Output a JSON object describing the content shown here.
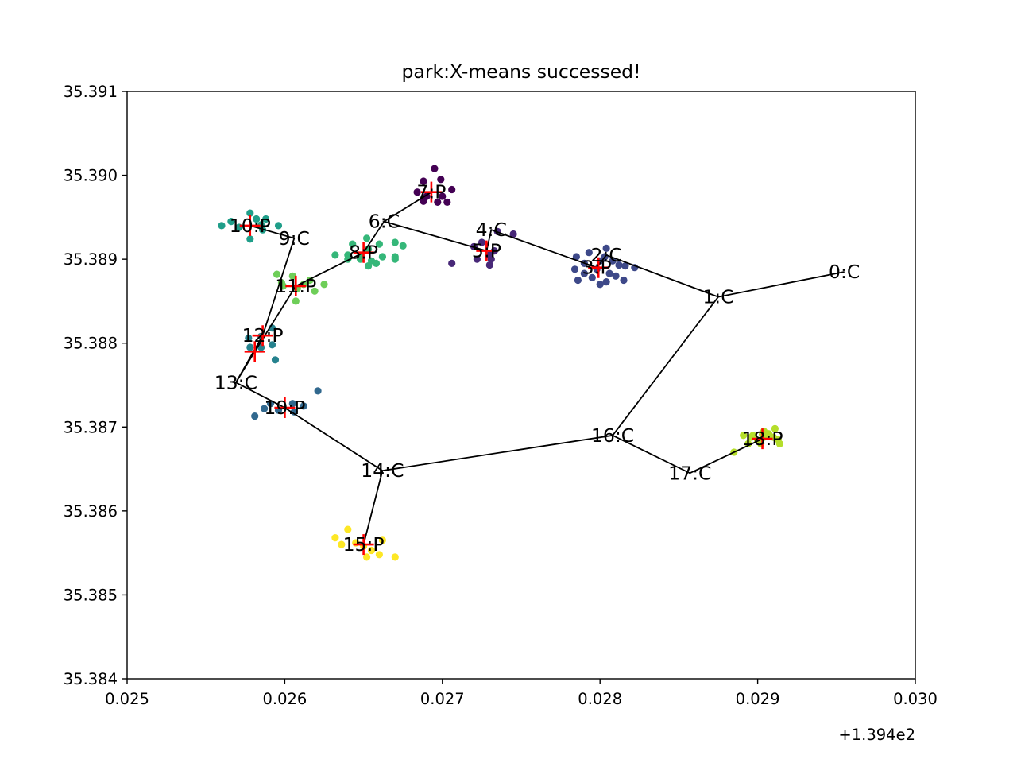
{
  "chart_data": {
    "type": "scatter",
    "title": "park:X-means successed!",
    "x_offset_label": "+1.394e2",
    "xlim": [
      0.025,
      0.03
    ],
    "ylim": [
      35.384,
      35.391
    ],
    "x_ticks": [
      "0.025",
      "0.026",
      "0.027",
      "0.028",
      "0.029",
      "0.030"
    ],
    "y_ticks": [
      "35.384",
      "35.385",
      "35.386",
      "35.387",
      "35.388",
      "35.389",
      "35.390",
      "35.391"
    ],
    "grid": false,
    "route": [
      {
        "label": "0:C",
        "x": 0.02955,
        "y": 35.38885
      },
      {
        "label": "1:C",
        "x": 0.02875,
        "y": 35.38855
      },
      {
        "label": "2:C",
        "x": 0.02804,
        "y": 35.38905
      },
      {
        "label": "3:P",
        "x": 0.02798,
        "y": 35.3889
      },
      {
        "label": "4:C",
        "x": 0.02731,
        "y": 35.38935
      },
      {
        "label": "5:P",
        "x": 0.02728,
        "y": 35.3891
      },
      {
        "label": "6:C",
        "x": 0.02663,
        "y": 35.38945
      },
      {
        "label": "7:P",
        "x": 0.02693,
        "y": 35.3898
      },
      {
        "label": "6:C",
        "x": 0.02663,
        "y": 35.38945
      },
      {
        "label": "8:P",
        "x": 0.0265,
        "y": 35.38908
      },
      {
        "label": "11:P",
        "x": 0.02607,
        "y": 35.38868
      },
      {
        "label": "12:P",
        "x": 0.02581,
        "y": 35.3879
      },
      {
        "label": "13:C",
        "x": 0.02569,
        "y": 35.38753
      },
      {
        "label": "12:P",
        "x": 0.02586,
        "y": 35.38809
      },
      {
        "label": "9:C",
        "x": 0.02606,
        "y": 35.38925
      },
      {
        "label": "10:P",
        "x": 0.02578,
        "y": 35.3894
      },
      {
        "label": "9:C",
        "x": 0.02606,
        "y": 35.38925
      },
      {
        "label": "12:P",
        "x": 0.02586,
        "y": 35.38809
      },
      {
        "label": "13:C",
        "x": 0.02569,
        "y": 35.38753
      },
      {
        "label": "19:P",
        "x": 0.026,
        "y": 35.38723
      },
      {
        "label": "14:C",
        "x": 0.02662,
        "y": 35.38648
      },
      {
        "label": "15:P",
        "x": 0.0265,
        "y": 35.3856
      },
      {
        "label": "14:C",
        "x": 0.02662,
        "y": 35.38648
      },
      {
        "label": "16:C",
        "x": 0.02808,
        "y": 35.3869
      },
      {
        "label": "17:C",
        "x": 0.02857,
        "y": 35.38645
      },
      {
        "label": "18:P",
        "x": 0.02903,
        "y": 35.38686
      },
      {
        "label": "17:C",
        "x": 0.02857,
        "y": 35.38645
      },
      {
        "label": "16:C",
        "x": 0.02808,
        "y": 35.3869
      },
      {
        "label": "1:C",
        "x": 0.02875,
        "y": 35.38855
      }
    ],
    "node_labels": [
      {
        "label": "0:C",
        "x": 0.02955,
        "y": 35.38885
      },
      {
        "label": "1:C",
        "x": 0.02875,
        "y": 35.38855
      },
      {
        "label": "2:C",
        "x": 0.02804,
        "y": 35.38905
      },
      {
        "label": "3:P",
        "x": 0.02798,
        "y": 35.3889
      },
      {
        "label": "4:C",
        "x": 0.02731,
        "y": 35.38935
      },
      {
        "label": "5:P",
        "x": 0.02728,
        "y": 35.3891
      },
      {
        "label": "6:C",
        "x": 0.02663,
        "y": 35.38945
      },
      {
        "label": "7:P",
        "x": 0.02693,
        "y": 35.3898
      },
      {
        "label": "8:P",
        "x": 0.0265,
        "y": 35.38908
      },
      {
        "label": "9:C",
        "x": 0.02606,
        "y": 35.38925
      },
      {
        "label": "10:P",
        "x": 0.02578,
        "y": 35.3894
      },
      {
        "label": "11:P",
        "x": 0.02607,
        "y": 35.38868
      },
      {
        "label": "12:P",
        "x": 0.02586,
        "y": 35.38809
      },
      {
        "label": "13:C",
        "x": 0.02569,
        "y": 35.38753
      },
      {
        "label": "14:C",
        "x": 0.02662,
        "y": 35.38648
      },
      {
        "label": "15:P",
        "x": 0.0265,
        "y": 35.3856
      },
      {
        "label": "16:C",
        "x": 0.02808,
        "y": 35.3869
      },
      {
        "label": "17:C",
        "x": 0.02857,
        "y": 35.38645
      },
      {
        "label": "18:P",
        "x": 0.02903,
        "y": 35.38686
      },
      {
        "label": "19:P",
        "x": 0.026,
        "y": 35.38723
      }
    ],
    "centroids": [
      {
        "x": 0.02693,
        "y": 35.3898
      },
      {
        "x": 0.02799,
        "y": 35.3889
      },
      {
        "x": 0.02728,
        "y": 35.3891
      },
      {
        "x": 0.0265,
        "y": 35.38908
      },
      {
        "x": 0.02578,
        "y": 35.3894
      },
      {
        "x": 0.02607,
        "y": 35.38868
      },
      {
        "x": 0.02581,
        "y": 35.3879
      },
      {
        "x": 0.02586,
        "y": 35.38809
      },
      {
        "x": 0.026,
        "y": 35.38723
      },
      {
        "x": 0.0265,
        "y": 35.3856
      },
      {
        "x": 0.02903,
        "y": 35.38686
      }
    ],
    "clusters": [
      {
        "color": "#440154",
        "points": [
          [
            0.02695,
            35.39008
          ],
          [
            0.02688,
            35.38993
          ],
          [
            0.02699,
            35.38995
          ],
          [
            0.02684,
            35.3898
          ],
          [
            0.02706,
            35.38983
          ],
          [
            0.0269,
            35.38975
          ],
          [
            0.02697,
            35.38968
          ],
          [
            0.02703,
            35.38968
          ],
          [
            0.027,
            35.38975
          ],
          [
            0.02688,
            35.38969
          ]
        ]
      },
      {
        "color": "#482878",
        "points": [
          [
            0.02745,
            35.3893
          ],
          [
            0.02735,
            35.38933
          ],
          [
            0.0272,
            35.38915
          ],
          [
            0.0273,
            35.38905
          ],
          [
            0.02731,
            35.389
          ],
          [
            0.02722,
            35.389
          ],
          [
            0.0273,
            35.38893
          ],
          [
            0.02706,
            35.38895
          ],
          [
            0.02725,
            35.3892
          ],
          [
            0.02733,
            35.3891
          ]
        ]
      },
      {
        "color": "#3e4989",
        "points": [
          [
            0.02804,
            35.38913
          ],
          [
            0.02785,
            35.38903
          ],
          [
            0.0279,
            35.38895
          ],
          [
            0.028,
            35.38898
          ],
          [
            0.02812,
            35.38893
          ],
          [
            0.0279,
            35.38883
          ],
          [
            0.02806,
            35.38883
          ],
          [
            0.02795,
            35.38878
          ],
          [
            0.02804,
            35.38873
          ],
          [
            0.02786,
            35.38875
          ],
          [
            0.02815,
            35.38875
          ],
          [
            0.02822,
            35.3889
          ],
          [
            0.02784,
            35.38888
          ],
          [
            0.02798,
            35.38888
          ],
          [
            0.0281,
            35.3888
          ],
          [
            0.02803,
            35.38903
          ],
          [
            0.02816,
            35.38892
          ],
          [
            0.02793,
            35.38908
          ],
          [
            0.02808,
            35.38898
          ],
          [
            0.028,
            35.3887
          ]
        ]
      },
      {
        "color": "#31688e",
        "points": [
          [
            0.02621,
            35.38743
          ],
          [
            0.02612,
            35.38725
          ],
          [
            0.02605,
            35.38728
          ],
          [
            0.02596,
            35.3872
          ],
          [
            0.02587,
            35.38722
          ],
          [
            0.02581,
            35.38713
          ],
          [
            0.02591,
            35.38728
          ],
          [
            0.02606,
            35.38718
          ]
        ]
      },
      {
        "color": "#26828e",
        "points": [
          [
            0.02585,
            35.38808
          ],
          [
            0.02592,
            35.38818
          ],
          [
            0.02578,
            35.38795
          ],
          [
            0.02585,
            35.38795
          ],
          [
            0.02592,
            35.38798
          ],
          [
            0.02594,
            35.3878
          ],
          [
            0.02577,
            35.38806
          ]
        ]
      },
      {
        "color": "#1f9e89",
        "points": [
          [
            0.02578,
            35.38955
          ],
          [
            0.02566,
            35.38945
          ],
          [
            0.0256,
            35.3894
          ],
          [
            0.02588,
            35.38948
          ],
          [
            0.02596,
            35.3894
          ],
          [
            0.02586,
            35.38935
          ],
          [
            0.02578,
            35.38924
          ],
          [
            0.02571,
            35.38938
          ],
          [
            0.02585,
            35.38941
          ],
          [
            0.02582,
            35.38948
          ]
        ]
      },
      {
        "color": "#35b779",
        "points": [
          [
            0.02643,
            35.38918
          ],
          [
            0.02652,
            35.38925
          ],
          [
            0.0266,
            35.38918
          ],
          [
            0.0267,
            35.3892
          ],
          [
            0.02675,
            35.38916
          ],
          [
            0.02632,
            35.38905
          ],
          [
            0.0264,
            35.38905
          ],
          [
            0.02648,
            35.38903
          ],
          [
            0.02653,
            35.38912
          ],
          [
            0.02662,
            35.38903
          ],
          [
            0.0267,
            35.389
          ],
          [
            0.0264,
            35.389
          ],
          [
            0.02648,
            35.389
          ],
          [
            0.02655,
            35.38898
          ],
          [
            0.02662,
            35.38903
          ],
          [
            0.0267,
            35.38903
          ],
          [
            0.02653,
            35.38892
          ],
          [
            0.02658,
            35.38895
          ]
        ]
      },
      {
        "color": "#6ece58",
        "points": [
          [
            0.02595,
            35.38882
          ],
          [
            0.02605,
            35.3888
          ],
          [
            0.02616,
            35.38875
          ],
          [
            0.02625,
            35.3887
          ],
          [
            0.02599,
            35.38868
          ],
          [
            0.02608,
            35.38865
          ],
          [
            0.02619,
            35.38862
          ],
          [
            0.02607,
            35.3885
          ],
          [
            0.02598,
            35.38872
          ],
          [
            0.02612,
            35.3887
          ]
        ]
      },
      {
        "color": "#b5de2b",
        "points": [
          [
            0.02904,
            35.38695
          ],
          [
            0.02911,
            35.38698
          ],
          [
            0.02897,
            35.3869
          ],
          [
            0.02904,
            35.38688
          ],
          [
            0.02913,
            35.38685
          ],
          [
            0.02891,
            35.3869
          ],
          [
            0.029,
            35.38684
          ],
          [
            0.0291,
            35.38688
          ],
          [
            0.02894,
            35.3868
          ],
          [
            0.02902,
            35.3868
          ],
          [
            0.02914,
            35.3868
          ],
          [
            0.02885,
            35.3867
          ],
          [
            0.02907,
            35.38692
          ],
          [
            0.02896,
            35.38688
          ],
          [
            0.02903,
            35.38691
          ]
        ]
      },
      {
        "color": "#fde725",
        "points": [
          [
            0.0264,
            35.38578
          ],
          [
            0.02632,
            35.38568
          ],
          [
            0.02645,
            35.38562
          ],
          [
            0.0265,
            35.38558
          ],
          [
            0.02655,
            35.38553
          ],
          [
            0.02662,
            35.38565
          ],
          [
            0.02636,
            35.3856
          ],
          [
            0.02652,
            35.38545
          ],
          [
            0.0266,
            35.38548
          ],
          [
            0.0267,
            35.38545
          ]
        ]
      }
    ]
  }
}
